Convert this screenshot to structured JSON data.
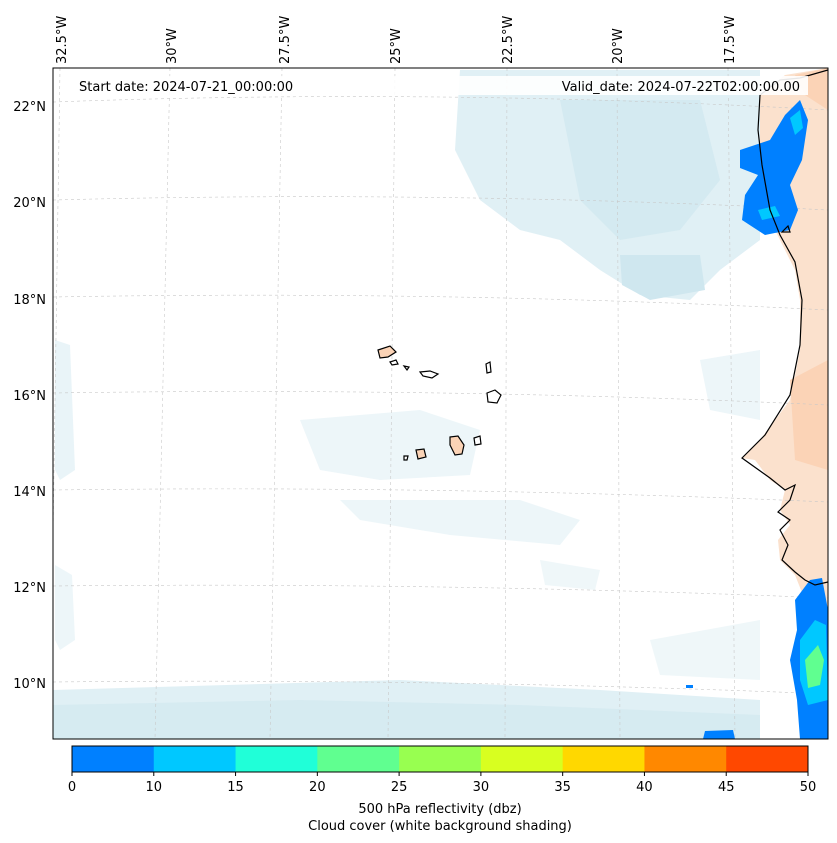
{
  "map": {
    "start_date": "Start date: 2024-07-21_00:00:00",
    "valid_date": "Valid_date: 2024-07-22T02:00:00.00",
    "lon_labels": [
      "32.5°W",
      "30°W",
      "27.5°W",
      "25°W",
      "22.5°W",
      "20°W",
      "17.5°W"
    ],
    "lat_labels": [
      "22°N",
      "20°N",
      "18°N",
      "16°N",
      "14°N",
      "12°N",
      "10°N"
    ]
  },
  "colorbar": {
    "ticks": [
      "0",
      "10",
      "15",
      "20",
      "25",
      "30",
      "35",
      "40",
      "45",
      "50"
    ],
    "colors": [
      "#0080ff",
      "#00c8ff",
      "#20ffd8",
      "#60ff90",
      "#98ff50",
      "#d8ff20",
      "#ffd800",
      "#ff8800",
      "#ff4800"
    ],
    "title": "500 hPa reflectivity (dbz)",
    "subtitle": "Cloud cover (white background shading)"
  },
  "colors": {
    "cloud": "#d6ebf2",
    "cloud_dark": "#bfdfea",
    "land": "#fbd3b6",
    "echo_low": "#0080ff",
    "echo_mid": "#00c8ff",
    "echo_high": "#60ff90",
    "grid": "#c8c8c8"
  }
}
